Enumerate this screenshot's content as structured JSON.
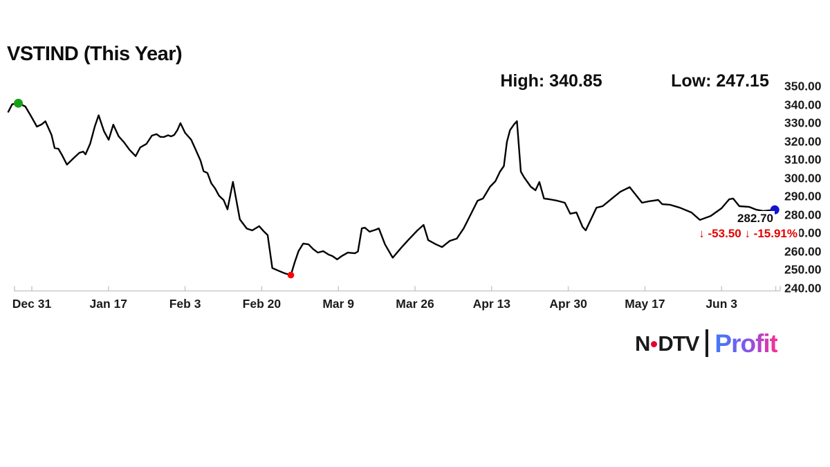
{
  "title": "VSTIND (This Year)",
  "stats": {
    "high": "High: 340.85",
    "low": "Low: 247.15"
  },
  "last_price": {
    "value": "282.70",
    "change_text": "↓ -53.50 ↓ -15.91%",
    "color": "#e60000"
  },
  "branding": {
    "network_n": "N",
    "network_dtv": "DTV",
    "product": "Profit",
    "text_color": "#1a1a1a",
    "dot_color": "#e4002b",
    "separator_color": "#1a1a1a",
    "profit_gradient": [
      "#3e7bfa",
      "#8055f0",
      "#fb2e93"
    ]
  },
  "chart_data": {
    "type": "line",
    "title": "VSTIND (This Year)",
    "high": 340.85,
    "low": 247.15,
    "last": 282.7,
    "change": -53.5,
    "change_pct": -15.91,
    "line_color": "#000000",
    "axis_color": "#c9c9c9",
    "y_min": 240,
    "y_max": 350,
    "y_tick_step": 10,
    "grid": false,
    "legend": false,
    "y_ticks": [
      "350.00",
      "340.00",
      "330.00",
      "320.00",
      "310.00",
      "300.00",
      "290.00",
      "280.00",
      "270.00",
      "260.00",
      "250.00",
      "240.00"
    ],
    "x_ticks": [
      "Dec 31",
      "Jan 17",
      "Feb 3",
      "Feb 20",
      "Mar 9",
      "Mar 26",
      "Apr 13",
      "Apr 30",
      "May 17",
      "Jun 3"
    ],
    "markers": [
      {
        "name": "period-high-marker",
        "color": "#18a018",
        "t": 0.013,
        "v": 340.85
      },
      {
        "name": "period-low-marker",
        "color": "#ff0000",
        "t": 0.366,
        "v": 247.15
      },
      {
        "name": "last-price-marker",
        "color": "#1414cc",
        "t": 0.993,
        "v": 282.7
      }
    ],
    "points": [
      [
        0,
        336.2
      ],
      [
        0.005,
        340.3
      ],
      [
        0.013,
        340.85
      ],
      [
        0.022,
        339.1
      ],
      [
        0.03,
        333.4
      ],
      [
        0.037,
        328.1
      ],
      [
        0.043,
        329.3
      ],
      [
        0.048,
        331
      ],
      [
        0.056,
        323.6
      ],
      [
        0.06,
        316.4
      ],
      [
        0.065,
        316
      ],
      [
        0.07,
        312.3
      ],
      [
        0.076,
        307.4
      ],
      [
        0.085,
        311.1
      ],
      [
        0.092,
        313.8
      ],
      [
        0.097,
        314.5
      ],
      [
        0.1,
        313
      ],
      [
        0.106,
        318.7
      ],
      [
        0.112,
        328.1
      ],
      [
        0.117,
        334.3
      ],
      [
        0.124,
        325.6
      ],
      [
        0.13,
        320.9
      ],
      [
        0.136,
        329.2
      ],
      [
        0.143,
        322.8
      ],
      [
        0.15,
        319.5
      ],
      [
        0.157,
        315.5
      ],
      [
        0.165,
        312
      ],
      [
        0.171,
        316.8
      ],
      [
        0.179,
        318.7
      ],
      [
        0.186,
        323.2
      ],
      [
        0.192,
        324
      ],
      [
        0.197,
        322.5
      ],
      [
        0.202,
        322.5
      ],
      [
        0.207,
        323.4
      ],
      [
        0.211,
        322.8
      ],
      [
        0.215,
        323.6
      ],
      [
        0.219,
        326.2
      ],
      [
        0.223,
        330
      ],
      [
        0.229,
        324.7
      ],
      [
        0.237,
        320.9
      ],
      [
        0.243,
        315.3
      ],
      [
        0.249,
        309.6
      ],
      [
        0.253,
        303.8
      ],
      [
        0.258,
        302.8
      ],
      [
        0.263,
        297.2
      ],
      [
        0.268,
        294.3
      ],
      [
        0.273,
        290.4
      ],
      [
        0.279,
        288
      ],
      [
        0.284,
        283
      ],
      [
        0.291,
        298
      ],
      [
        0.3,
        277.5
      ],
      [
        0.309,
        272.5
      ],
      [
        0.316,
        271.5
      ],
      [
        0.325,
        273.8
      ],
      [
        0.331,
        271
      ],
      [
        0.336,
        268.9
      ],
      [
        0.339,
        260
      ],
      [
        0.342,
        251
      ],
      [
        0.35,
        249.5
      ],
      [
        0.358,
        248.1
      ],
      [
        0.366,
        247.15
      ],
      [
        0.371,
        254
      ],
      [
        0.376,
        260.2
      ],
      [
        0.382,
        264.3
      ],
      [
        0.389,
        263.9
      ],
      [
        0.395,
        261.3
      ],
      [
        0.401,
        259.4
      ],
      [
        0.408,
        260.2
      ],
      [
        0.415,
        258.3
      ],
      [
        0.42,
        257.5
      ],
      [
        0.426,
        255.7
      ],
      [
        0.432,
        257.5
      ],
      [
        0.44,
        259.4
      ],
      [
        0.449,
        259
      ],
      [
        0.453,
        260
      ],
      [
        0.458,
        272.6
      ],
      [
        0.462,
        273
      ],
      [
        0.468,
        270.8
      ],
      [
        0.476,
        271.9
      ],
      [
        0.48,
        272.6
      ],
      [
        0.488,
        263.9
      ],
      [
        0.498,
        256.6
      ],
      [
        0.509,
        262
      ],
      [
        0.518,
        266.2
      ],
      [
        0.53,
        271.5
      ],
      [
        0.538,
        274.5
      ],
      [
        0.544,
        266.2
      ],
      [
        0.554,
        263.9
      ],
      [
        0.562,
        262.4
      ],
      [
        0.572,
        265.8
      ],
      [
        0.581,
        267
      ],
      [
        0.59,
        272.6
      ],
      [
        0.599,
        280.2
      ],
      [
        0.608,
        287.7
      ],
      [
        0.615,
        288.9
      ],
      [
        0.624,
        295.3
      ],
      [
        0.631,
        298.3
      ],
      [
        0.637,
        303.6
      ],
      [
        0.642,
        306.6
      ],
      [
        0.646,
        319.8
      ],
      [
        0.65,
        326.2
      ],
      [
        0.655,
        329.2
      ],
      [
        0.659,
        331.1
      ],
      [
        0.664,
        303.6
      ],
      [
        0.668,
        300.6
      ],
      [
        0.677,
        295.3
      ],
      [
        0.683,
        293.4
      ],
      [
        0.688,
        297.9
      ],
      [
        0.694,
        288.9
      ],
      [
        0.701,
        288.5
      ],
      [
        0.711,
        287.7
      ],
      [
        0.721,
        286.6
      ],
      [
        0.728,
        280.6
      ],
      [
        0.736,
        281.3
      ],
      [
        0.744,
        273.4
      ],
      [
        0.748,
        271.5
      ],
      [
        0.762,
        283.9
      ],
      [
        0.77,
        284.7
      ],
      [
        0.782,
        288.9
      ],
      [
        0.793,
        292.6
      ],
      [
        0.805,
        295.1
      ],
      [
        0.821,
        286.6
      ],
      [
        0.83,
        287.4
      ],
      [
        0.842,
        288.1
      ],
      [
        0.847,
        285.8
      ],
      [
        0.857,
        285.5
      ],
      [
        0.87,
        283.9
      ],
      [
        0.885,
        281.3
      ],
      [
        0.896,
        277.2
      ],
      [
        0.91,
        279.4
      ],
      [
        0.924,
        283.6
      ],
      [
        0.934,
        288.5
      ],
      [
        0.939,
        288.9
      ],
      [
        0.947,
        284.7
      ],
      [
        0.96,
        284.3
      ],
      [
        0.969,
        282.8
      ],
      [
        0.978,
        282.1
      ],
      [
        0.993,
        282.7
      ]
    ]
  }
}
